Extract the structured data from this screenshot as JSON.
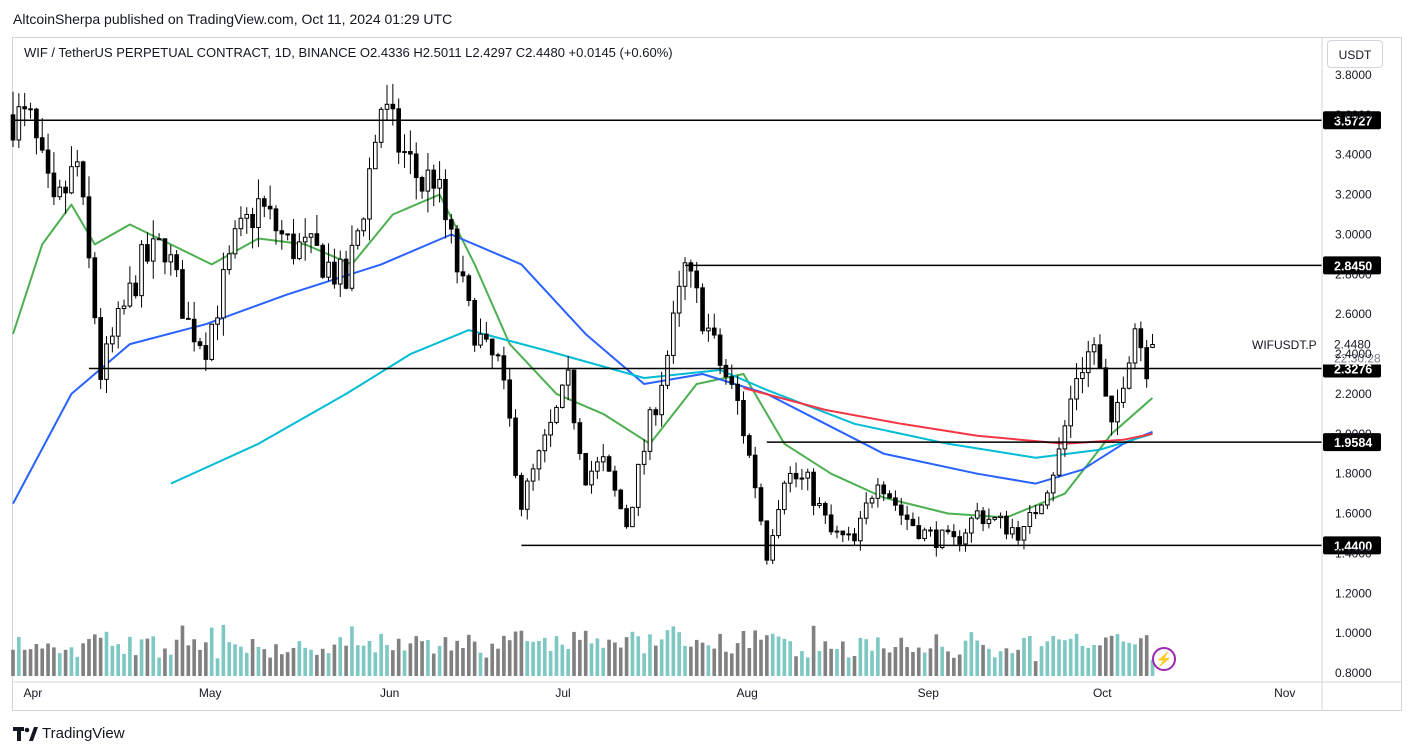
{
  "header": {
    "attribution": "AltcoinSherpa published on TradingView.com, Oct 11, 2024 01:29 UTC"
  },
  "legend": {
    "text": "WIF / TetherUS PERPETUAL CONTRACT, 1D, BINANCE   O2.4336   H2.5011   L2.4297   C2.4480   +0.0145 (+0.60%)"
  },
  "currency": "USDT",
  "symbol": "WIFUSDT.P",
  "countdown": "22:30:28",
  "footer": {
    "brand": "TradingView",
    "logo_icon": "tradingview-logo-icon",
    "bolt_icon": "lightning-icon",
    "bolt_glyph": "⚡"
  },
  "colors": {
    "up": "#ffffff",
    "down": "#000000",
    "wick": "#000000",
    "ma_green": "#4caf50",
    "ma_blue": "#2962ff",
    "ma_cyan": "#00bcd4",
    "ma_red": "#f23645",
    "vol_up": "#7ec8c4",
    "vol_down": "#808080",
    "level_line": "#000000",
    "bolt": "#9c27b0"
  },
  "chart_data": {
    "type": "candlestick",
    "title": "WIF / TetherUS PERPETUAL CONTRACT, 1D, BINANCE",
    "x_range": [
      "2024-03-29",
      "2024-11-08"
    ],
    "x_ticks": [
      {
        "label": "Apr",
        "date": "2024-04-01"
      },
      {
        "label": "May",
        "date": "2024-05-01"
      },
      {
        "label": "Jun",
        "date": "2024-06-01"
      },
      {
        "label": "Jul",
        "date": "2024-07-01"
      },
      {
        "label": "Aug",
        "date": "2024-08-01"
      },
      {
        "label": "Sep",
        "date": "2024-09-01"
      },
      {
        "label": "Oct",
        "date": "2024-10-01"
      },
      {
        "label": "Nov",
        "date": "2024-11-01"
      }
    ],
    "y_range": [
      0.8,
      3.8
    ],
    "y_ticks": [
      "3.8000",
      "3.6000",
      "3.4000",
      "3.2000",
      "3.0000",
      "2.8000",
      "2.6000",
      "2.4000",
      "2.2000",
      "2.0000",
      "1.8000",
      "1.6000",
      "1.4000",
      "1.2000",
      "1.0000",
      "0.8000"
    ],
    "horizontal_levels": [
      {
        "value": 3.5727,
        "label": "3.5727",
        "start": "2024-03-29"
      },
      {
        "value": 2.845,
        "label": "2.8450",
        "start": "2024-07-22"
      },
      {
        "value": 2.3276,
        "label": "2.3276",
        "start": "2024-04-11"
      },
      {
        "value": 1.9584,
        "label": "1.9584",
        "start": "2024-08-05"
      },
      {
        "value": 1.44,
        "label": "1.4400",
        "start": "2024-06-24"
      }
    ],
    "last_price": {
      "value": 2.448,
      "label": "2.4480"
    },
    "ohlc_last": {
      "open": 2.4336,
      "high": 2.5011,
      "low": 2.4297,
      "close": 2.448,
      "change": 0.0145,
      "change_pct": 0.6
    },
    "price_path": [
      [
        "2024-03-29",
        3.6
      ],
      [
        "2024-04-01",
        3.55
      ],
      [
        "2024-04-05",
        3.1
      ],
      [
        "2024-04-09",
        3.35
      ],
      [
        "2024-04-12",
        2.6
      ],
      [
        "2024-04-13",
        2.3
      ],
      [
        "2024-04-16",
        2.55
      ],
      [
        "2024-04-20",
        2.85
      ],
      [
        "2024-04-24",
        2.95
      ],
      [
        "2024-04-28",
        2.55
      ],
      [
        "2024-05-01",
        2.45
      ],
      [
        "2024-05-06",
        2.95
      ],
      [
        "2024-05-10",
        3.15
      ],
      [
        "2024-05-15",
        2.95
      ],
      [
        "2024-05-20",
        2.9
      ],
      [
        "2024-05-25",
        2.75
      ],
      [
        "2024-05-28",
        3.15
      ],
      [
        "2024-05-31",
        3.65
      ],
      [
        "2024-06-03",
        3.45
      ],
      [
        "2024-06-07",
        3.25
      ],
      [
        "2024-06-09",
        3.3
      ],
      [
        "2024-06-12",
        2.95
      ],
      [
        "2024-06-15",
        2.6
      ],
      [
        "2024-06-18",
        2.4
      ],
      [
        "2024-06-20",
        2.35
      ],
      [
        "2024-06-22",
        2.05
      ],
      [
        "2024-06-24",
        1.65
      ],
      [
        "2024-06-28",
        1.95
      ],
      [
        "2024-07-02",
        2.25
      ],
      [
        "2024-07-05",
        1.8
      ],
      [
        "2024-07-08",
        1.85
      ],
      [
        "2024-07-12",
        1.55
      ],
      [
        "2024-07-16",
        2.05
      ],
      [
        "2024-07-19",
        2.4
      ],
      [
        "2024-07-22",
        2.82
      ],
      [
        "2024-07-25",
        2.6
      ],
      [
        "2024-07-28",
        2.35
      ],
      [
        "2024-07-31",
        2.15
      ],
      [
        "2024-08-03",
        1.75
      ],
      [
        "2024-08-05",
        1.4
      ],
      [
        "2024-08-08",
        1.8
      ],
      [
        "2024-08-12",
        1.75
      ],
      [
        "2024-08-16",
        1.5
      ],
      [
        "2024-08-20",
        1.45
      ],
      [
        "2024-08-24",
        1.8
      ],
      [
        "2024-08-28",
        1.6
      ],
      [
        "2024-09-01",
        1.5
      ],
      [
        "2024-09-06",
        1.45
      ],
      [
        "2024-09-10",
        1.6
      ],
      [
        "2024-09-14",
        1.55
      ],
      [
        "2024-09-18",
        1.5
      ],
      [
        "2024-09-22",
        1.75
      ],
      [
        "2024-09-24",
        1.9
      ],
      [
        "2024-09-27",
        2.3
      ],
      [
        "2024-09-30",
        2.45
      ],
      [
        "2024-10-03",
        2.0
      ],
      [
        "2024-10-05",
        2.3
      ],
      [
        "2024-10-07",
        2.55
      ],
      [
        "2024-10-09",
        2.35
      ],
      [
        "2024-10-10",
        2.448
      ]
    ],
    "series": [
      {
        "name": "",
        "color": "#4caf50",
        "points": [
          [
            "2024-03-29",
            2.5
          ],
          [
            "2024-04-03",
            2.95
          ],
          [
            "2024-04-08",
            3.15
          ],
          [
            "2024-04-12",
            2.95
          ],
          [
            "2024-04-18",
            3.05
          ],
          [
            "2024-04-25",
            2.95
          ],
          [
            "2024-05-02",
            2.85
          ],
          [
            "2024-05-10",
            2.98
          ],
          [
            "2024-05-18",
            2.95
          ],
          [
            "2024-05-26",
            2.85
          ],
          [
            "2024-06-02",
            3.1
          ],
          [
            "2024-06-10",
            3.2
          ],
          [
            "2024-06-16",
            2.85
          ],
          [
            "2024-06-22",
            2.45
          ],
          [
            "2024-06-30",
            2.2
          ],
          [
            "2024-07-08",
            2.1
          ],
          [
            "2024-07-16",
            1.95
          ],
          [
            "2024-07-24",
            2.25
          ],
          [
            "2024-08-01",
            2.3
          ],
          [
            "2024-08-08",
            1.95
          ],
          [
            "2024-08-16",
            1.8
          ],
          [
            "2024-08-25",
            1.68
          ],
          [
            "2024-09-05",
            1.6
          ],
          [
            "2024-09-15",
            1.58
          ],
          [
            "2024-09-25",
            1.7
          ],
          [
            "2024-10-03",
            2.0
          ],
          [
            "2024-10-10",
            2.18
          ]
        ]
      },
      {
        "name": "",
        "color": "#2962ff",
        "points": [
          [
            "2024-03-29",
            1.65
          ],
          [
            "2024-04-08",
            2.2
          ],
          [
            "2024-04-18",
            2.45
          ],
          [
            "2024-05-01",
            2.55
          ],
          [
            "2024-05-15",
            2.7
          ],
          [
            "2024-05-31",
            2.85
          ],
          [
            "2024-06-12",
            3.0
          ],
          [
            "2024-06-24",
            2.85
          ],
          [
            "2024-07-05",
            2.5
          ],
          [
            "2024-07-15",
            2.25
          ],
          [
            "2024-07-25",
            2.3
          ],
          [
            "2024-08-05",
            2.2
          ],
          [
            "2024-08-15",
            2.05
          ],
          [
            "2024-08-25",
            1.9
          ],
          [
            "2024-09-10",
            1.8
          ],
          [
            "2024-09-20",
            1.75
          ],
          [
            "2024-09-28",
            1.82
          ],
          [
            "2024-10-05",
            1.95
          ],
          [
            "2024-10-10",
            2.01
          ]
        ]
      },
      {
        "name": "",
        "color": "#00bcd4",
        "points": [
          [
            "2024-04-25",
            1.75
          ],
          [
            "2024-05-10",
            1.95
          ],
          [
            "2024-05-25",
            2.2
          ],
          [
            "2024-06-05",
            2.4
          ],
          [
            "2024-06-15",
            2.52
          ],
          [
            "2024-06-28",
            2.42
          ],
          [
            "2024-07-15",
            2.28
          ],
          [
            "2024-07-28",
            2.32
          ],
          [
            "2024-08-05",
            2.22
          ],
          [
            "2024-08-20",
            2.05
          ],
          [
            "2024-09-05",
            1.95
          ],
          [
            "2024-09-20",
            1.88
          ],
          [
            "2024-10-01",
            1.92
          ],
          [
            "2024-10-10",
            2.0
          ]
        ]
      },
      {
        "name": "",
        "color": "#f23645",
        "points": [
          [
            "2024-08-01",
            2.23
          ],
          [
            "2024-08-15",
            2.12
          ],
          [
            "2024-08-28",
            2.05
          ],
          [
            "2024-09-10",
            1.99
          ],
          [
            "2024-09-25",
            1.95
          ],
          [
            "2024-10-05",
            1.97
          ],
          [
            "2024-10-10",
            2.0
          ]
        ]
      }
    ]
  }
}
